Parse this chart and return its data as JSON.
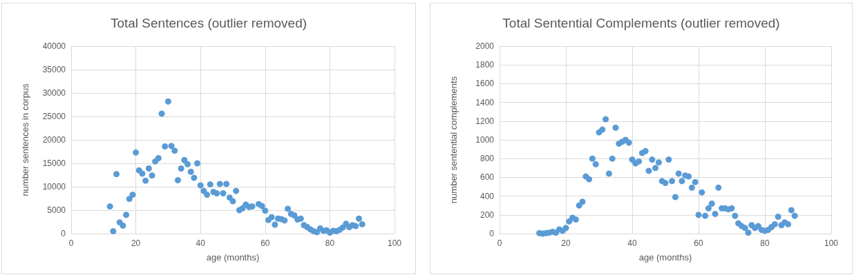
{
  "chart_data": [
    {
      "type": "scatter",
      "title": "Total Sentences (outlier removed)",
      "xlabel": "age (months)",
      "ylabel": "number sentences in corpus",
      "xlim": [
        0,
        100
      ],
      "xticks": [
        0,
        20,
        40,
        60,
        80,
        100
      ],
      "ylim": [
        0,
        40000
      ],
      "yticks": [
        0,
        5000,
        10000,
        15000,
        20000,
        25000,
        30000,
        35000,
        40000
      ],
      "grid": true,
      "marker": "circle",
      "series": [
        {
          "color": "#5b9bd5",
          "x": [
            12,
            13,
            14,
            15,
            16,
            17,
            18,
            19,
            20,
            21,
            22,
            23,
            24,
            25,
            26,
            27,
            28,
            29,
            30,
            31,
            32,
            33,
            34,
            35,
            36,
            37,
            38,
            39,
            40,
            41,
            42,
            43,
            44,
            45,
            46,
            47,
            48,
            49,
            50,
            51,
            52,
            53,
            54,
            55,
            56,
            58,
            59,
            60,
            61,
            62,
            63,
            64,
            65,
            66,
            67,
            68,
            69,
            70,
            71,
            72,
            73,
            74,
            75,
            76,
            77,
            78,
            79,
            80,
            81,
            82,
            83,
            84,
            85,
            86,
            87,
            88,
            89,
            90
          ],
          "values": [
            5800,
            500,
            12700,
            2400,
            1700,
            4000,
            7400,
            8300,
            17300,
            13500,
            12800,
            11300,
            13900,
            12400,
            15400,
            16100,
            25600,
            18600,
            28200,
            18700,
            17700,
            11400,
            13900,
            15700,
            14800,
            13200,
            11900,
            15000,
            10300,
            9100,
            8300,
            10500,
            8900,
            8600,
            10600,
            8600,
            10600,
            7700,
            6900,
            9100,
            5000,
            5400,
            6200,
            5700,
            5800,
            6300,
            5900,
            4900,
            2900,
            3500,
            1900,
            3200,
            3100,
            2800,
            5300,
            4200,
            3900,
            3000,
            3200,
            1800,
            1400,
            900,
            500,
            300,
            1100,
            600,
            700,
            200,
            600,
            500,
            800,
            1300,
            2100,
            1400,
            1800,
            1600,
            3200,
            2000
          ]
        }
      ]
    },
    {
      "type": "scatter",
      "title": "Total Sentential Complements (outlier removed)",
      "xlabel": "age (months)",
      "ylabel": "number sentential complements",
      "xlim": [
        0,
        100
      ],
      "xticks": [
        0,
        20,
        40,
        60,
        80,
        100
      ],
      "ylim": [
        0,
        2000
      ],
      "yticks": [
        0,
        200,
        400,
        600,
        800,
        1000,
        1200,
        1400,
        1600,
        1800,
        2000
      ],
      "grid": true,
      "marker": "circle",
      "series": [
        {
          "color": "#5b9bd5",
          "x": [
            12,
            13,
            14,
            15,
            16,
            17,
            18,
            19,
            20,
            21,
            22,
            23,
            24,
            25,
            26,
            27,
            28,
            29,
            30,
            31,
            32,
            33,
            34,
            35,
            36,
            37,
            38,
            39,
            40,
            41,
            42,
            43,
            44,
            45,
            46,
            47,
            48,
            49,
            50,
            51,
            52,
            53,
            54,
            55,
            56,
            57,
            58,
            59,
            60,
            61,
            62,
            63,
            64,
            65,
            66,
            67,
            68,
            69,
            70,
            71,
            72,
            73,
            74,
            75,
            76,
            77,
            78,
            79,
            80,
            81,
            82,
            83,
            84,
            85,
            86,
            87,
            88,
            89
          ],
          "values": [
            5,
            0,
            5,
            10,
            20,
            10,
            45,
            30,
            60,
            130,
            170,
            150,
            300,
            340,
            610,
            580,
            800,
            740,
            1080,
            1110,
            1220,
            640,
            800,
            1130,
            960,
            980,
            1000,
            970,
            790,
            750,
            770,
            860,
            880,
            670,
            790,
            700,
            760,
            560,
            540,
            790,
            560,
            390,
            640,
            560,
            620,
            610,
            490,
            550,
            200,
            440,
            190,
            270,
            320,
            210,
            490,
            270,
            270,
            260,
            270,
            190,
            110,
            80,
            60,
            10,
            90,
            60,
            80,
            40,
            30,
            40,
            70,
            100,
            180,
            90,
            120,
            100,
            250,
            190
          ]
        }
      ]
    }
  ]
}
